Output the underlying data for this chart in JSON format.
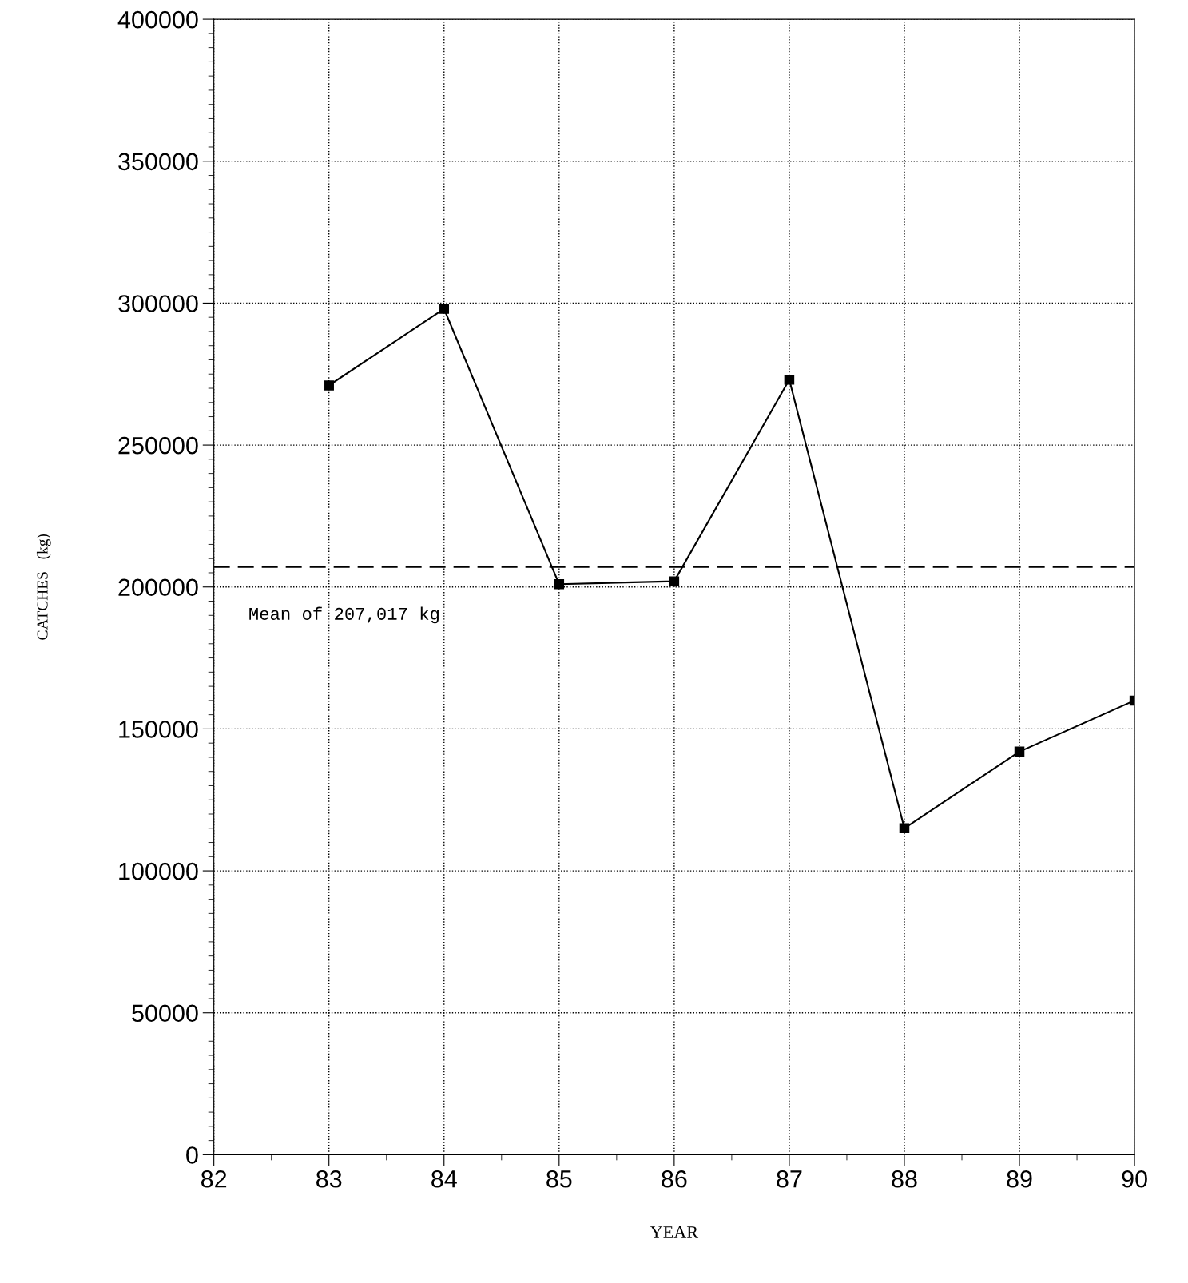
{
  "chart_data": {
    "type": "line",
    "xlabel": "YEAR",
    "ylabel": "CATCHES   (kg)",
    "x": [
      83,
      84,
      85,
      86,
      87,
      88,
      89,
      90
    ],
    "series": [
      {
        "color": "#000000",
        "values": [
          271000,
          298000,
          201000,
          202000,
          273000,
          115000,
          142000,
          160000
        ]
      }
    ],
    "xlim": [
      82,
      90
    ],
    "xticks": [
      82,
      83,
      84,
      85,
      86,
      87,
      88,
      89,
      90
    ],
    "ylim": [
      0,
      400000
    ],
    "yticks": [
      0,
      50000,
      100000,
      150000,
      200000,
      250000,
      300000,
      350000,
      400000
    ],
    "ref_lines": [
      {
        "axis": "y",
        "value": 207017,
        "label": "Mean of 207,017 kg",
        "color": "#000000",
        "line_style": "dashed"
      }
    ],
    "grid": true,
    "marker": "square",
    "line_style": "solid",
    "legend": false
  }
}
